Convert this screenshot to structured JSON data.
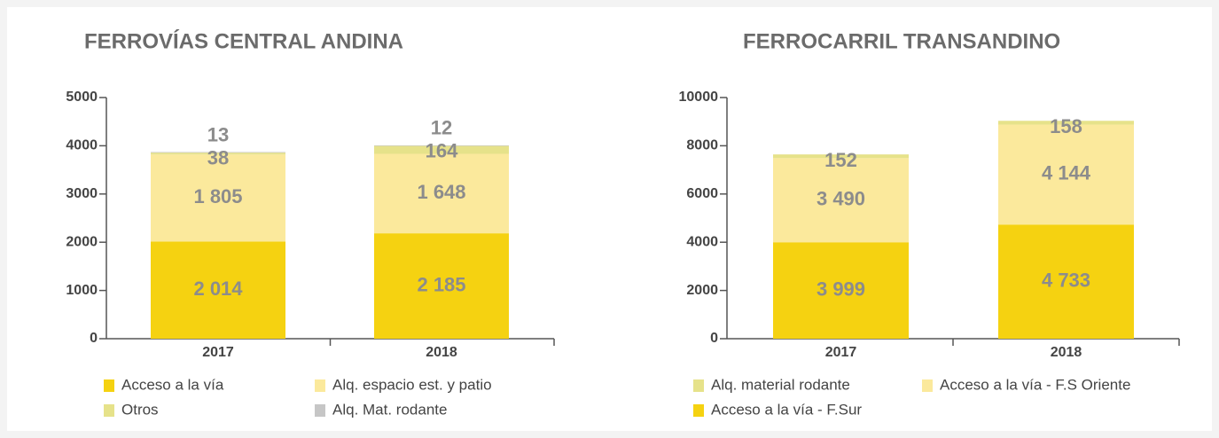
{
  "chart_data": [
    {
      "type": "bar",
      "stacked": true,
      "title": "FERROVÍAS CENTRAL ANDINA",
      "categories": [
        "2017",
        "2018"
      ],
      "series": [
        {
          "name": "Acceso a la vía",
          "color": "#f5d211",
          "values": [
            2014,
            2185
          ],
          "value_labels": [
            "2 014",
            "2 185"
          ]
        },
        {
          "name": "Alq. espacio est. y patio",
          "color": "#fbe99c",
          "values": [
            1805,
            1648
          ],
          "value_labels": [
            "1 805",
            "1 648"
          ]
        },
        {
          "name": "Otros",
          "color": "#e6e28a",
          "values": [
            38,
            164
          ]
        },
        {
          "name": "Alq. Mat. rodante",
          "color": "#c6c6c6",
          "values": [
            13,
            12
          ]
        }
      ],
      "ylim": [
        0,
        5000
      ],
      "yticks": [
        0,
        1000,
        2000,
        3000,
        4000,
        5000
      ]
    },
    {
      "type": "bar",
      "stacked": true,
      "title": "FERROCARRIL TRANSANDINO",
      "categories": [
        "2017",
        "2018"
      ],
      "series": [
        {
          "name": "Acceso a la vía - F.Sur",
          "color": "#f5d211",
          "values": [
            3999,
            4733
          ],
          "value_labels": [
            "3 999",
            "4 733"
          ]
        },
        {
          "name": "Acceso a la vía - F.S Oriente",
          "color": "#fbe99c",
          "values": [
            3490,
            4144
          ],
          "value_labels": [
            "3 490",
            "4 144"
          ]
        },
        {
          "name": "Alq. material rodante",
          "color": "#e6e28a",
          "values": [
            152,
            158
          ]
        }
      ],
      "ylim": [
        0,
        10000
      ],
      "yticks": [
        0,
        2000,
        4000,
        6000,
        8000,
        10000
      ]
    }
  ]
}
